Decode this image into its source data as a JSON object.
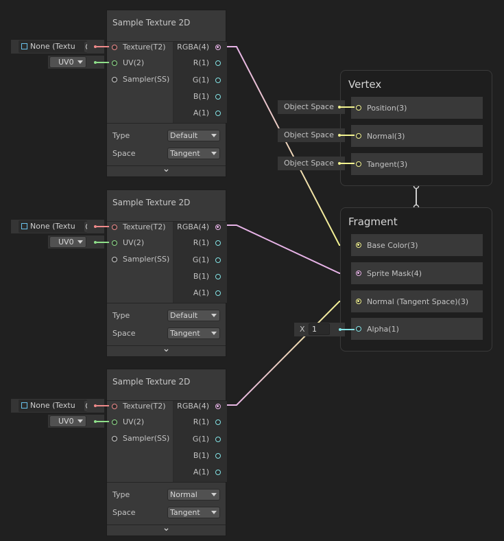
{
  "nodes": [
    {
      "title": "Sample Texture 2D",
      "inputs": [
        "Texture(T2)",
        "UV(2)",
        "Sampler(SS)"
      ],
      "outputs": [
        "RGBA(4)",
        "R(1)",
        "G(1)",
        "B(1)",
        "A(1)"
      ],
      "type_label": "Type",
      "type_value": "Default",
      "space_label": "Space",
      "space_value": "Tangent",
      "texture_field": "None (Textu",
      "uv_value": "UV0"
    },
    {
      "title": "Sample Texture 2D",
      "inputs": [
        "Texture(T2)",
        "UV(2)",
        "Sampler(SS)"
      ],
      "outputs": [
        "RGBA(4)",
        "R(1)",
        "G(1)",
        "B(1)",
        "A(1)"
      ],
      "type_label": "Type",
      "type_value": "Default",
      "space_label": "Space",
      "space_value": "Tangent",
      "texture_field": "None (Textu",
      "uv_value": "UV0"
    },
    {
      "title": "Sample Texture 2D",
      "inputs": [
        "Texture(T2)",
        "UV(2)",
        "Sampler(SS)"
      ],
      "outputs": [
        "RGBA(4)",
        "R(1)",
        "G(1)",
        "B(1)",
        "A(1)"
      ],
      "type_label": "Type",
      "type_value": "Normal",
      "space_label": "Space",
      "space_value": "Tangent",
      "texture_field": "None (Textu",
      "uv_value": "UV0"
    }
  ],
  "vertex": {
    "title": "Vertex",
    "rows": [
      {
        "label": "Position(3)",
        "input": "Object Space"
      },
      {
        "label": "Normal(3)",
        "input": "Object Space"
      },
      {
        "label": "Tangent(3)",
        "input": "Object Space"
      }
    ]
  },
  "fragment": {
    "title": "Fragment",
    "rows": [
      {
        "label": "Base Color(3)"
      },
      {
        "label": "Sprite Mask(4)"
      },
      {
        "label": "Normal (Tangent Space)(3)"
      },
      {
        "label": "Alpha(1)",
        "input_axis": "X",
        "input_value": "1"
      }
    ]
  },
  "colors": {
    "texture": "#f08a8a",
    "uv": "#8fe08a",
    "vector4": "#e8b4e8",
    "vector3": "#f4f490",
    "float": "#84e4e7",
    "sampler": "#cccccc"
  },
  "icons": {
    "texture_field": "texture-icon",
    "picker": "object-picker-icon",
    "dropdown": "dropdown-arrow-icon",
    "expand": "chevron-down-icon"
  }
}
